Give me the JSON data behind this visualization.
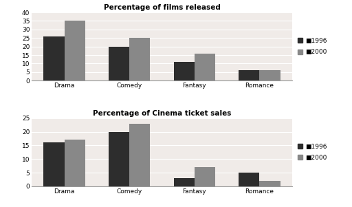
{
  "chart1": {
    "title": "Percentage of films released",
    "categories": [
      "Drama",
      "Comedy",
      "Fantasy",
      "Romance"
    ],
    "values_1996": [
      26,
      20,
      11,
      6
    ],
    "values_2000": [
      35,
      25,
      16,
      6
    ],
    "ylim": [
      0,
      40
    ],
    "yticks": [
      0,
      5,
      10,
      15,
      20,
      25,
      30,
      35,
      40
    ]
  },
  "chart2": {
    "title": "Percentage of Cinema ticket sales",
    "categories": [
      "Drama",
      "Comedy",
      "Fantasy",
      "Romance"
    ],
    "values_1996": [
      16,
      20,
      3,
      5
    ],
    "values_2000": [
      17,
      23,
      7,
      2
    ],
    "ylim": [
      0,
      25
    ],
    "yticks": [
      0,
      5,
      10,
      15,
      20,
      25
    ]
  },
  "color_1996": "#2d2d2d",
  "color_2000": "#888888",
  "legend_labels": [
    "1996",
    "2000"
  ],
  "bar_width": 0.32,
  "bg_color": "#ffffff",
  "plot_bg": "#f0ebe8"
}
